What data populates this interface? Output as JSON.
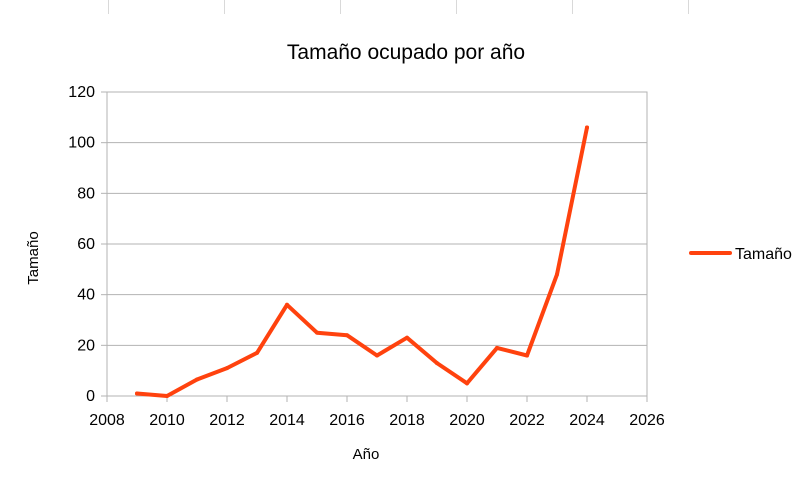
{
  "chart_data": {
    "type": "line",
    "title": "Tamaño ocupado por año",
    "xlabel": "Año",
    "ylabel": "Tamaño",
    "xlim": [
      2008,
      2026
    ],
    "ylim": [
      0,
      120
    ],
    "x_ticks": [
      2008,
      2010,
      2012,
      2014,
      2016,
      2018,
      2020,
      2022,
      2024,
      2026
    ],
    "y_ticks": [
      0,
      20,
      40,
      60,
      80,
      100,
      120
    ],
    "grid": "horizontal",
    "legend_position": "right",
    "series": [
      {
        "name": "Tamaño",
        "color": "#ff420e",
        "x": [
          2009,
          2010,
          2011,
          2012,
          2013,
          2014,
          2015,
          2016,
          2017,
          2018,
          2019,
          2020,
          2021,
          2022,
          2023,
          2024
        ],
        "values": [
          1,
          0,
          6.5,
          11,
          17,
          36,
          25,
          24,
          16,
          23,
          13,
          5,
          19,
          16,
          48,
          106
        ]
      }
    ]
  }
}
